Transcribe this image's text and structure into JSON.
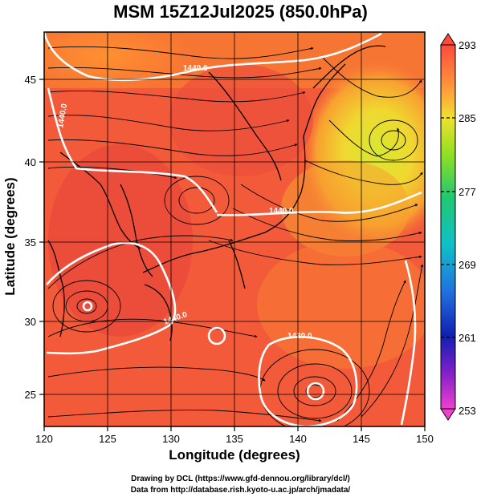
{
  "title": "MSM 15Z12Jul2025 (850.0hPa)",
  "xlabel": "Longitude (degrees)",
  "ylabel": "Latitude  (degrees)",
  "credit_line1": "Drawing by DCL (https://www.gfd-dennou.org/library/dcl/)",
  "credit_line2": "Data from http://database.rish.kyoto-u.ac.jp/arch/jmadata/",
  "x_ticks": [
    "120",
    "125",
    "130",
    "135",
    "140",
    "145",
    "150"
  ],
  "y_ticks": [
    "25",
    "30",
    "35",
    "40",
    "45"
  ],
  "colorbar": {
    "ticks": [
      "293",
      "285",
      "277",
      "269",
      "261",
      "253"
    ],
    "min": 253,
    "max": 293
  },
  "contour_labels": [
    "1440.0",
    "1440.0",
    "1440.0",
    "1440.0",
    "1430.0"
  ],
  "chart_data": {
    "type": "heatmap",
    "description_fields": "temperature shading with streamlines and geopotential height contours",
    "xlim": [
      120,
      150
    ],
    "ylim": [
      22.7,
      47.7
    ],
    "colorbar_range": [
      253,
      293
    ],
    "grid": true
  }
}
